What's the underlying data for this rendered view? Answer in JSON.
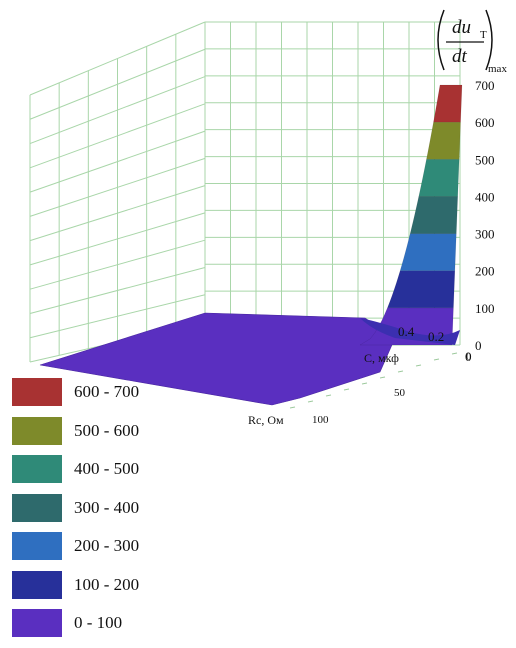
{
  "chart_data": {
    "type": "surface",
    "z_axis_label": "du_T/dt",
    "z_axis_numerator": "du",
    "z_axis_subscript": "T",
    "z_axis_denominator": "dt",
    "z_axis_suffix": "max",
    "x_axis_label": "C, мкф",
    "y_axis_label": "Rc, Ом",
    "x_ticks": [
      "0.4",
      "0.2",
      "0"
    ],
    "y_ticks": [
      "0",
      "50",
      "100"
    ],
    "z_ticks": [
      "0",
      "100",
      "200",
      "300",
      "400",
      "500",
      "600",
      "700"
    ],
    "zlim": [
      0,
      700
    ],
    "grid": true,
    "legend_position": "bottom-left",
    "legend": [
      {
        "label": "600 - 700",
        "color": "#a83232"
      },
      {
        "label": "500 - 600",
        "color": "#7e8a2a"
      },
      {
        "label": "400 - 500",
        "color": "#2f8a78"
      },
      {
        "label": "300 - 400",
        "color": "#2e6a6c"
      },
      {
        "label": "200 - 300",
        "color": "#2f6fc0"
      },
      {
        "label": "100 - 200",
        "color": "#27309a"
      },
      {
        "label": "0 - 100",
        "color": "#5a2fc0"
      }
    ],
    "peak_value": 700
  }
}
